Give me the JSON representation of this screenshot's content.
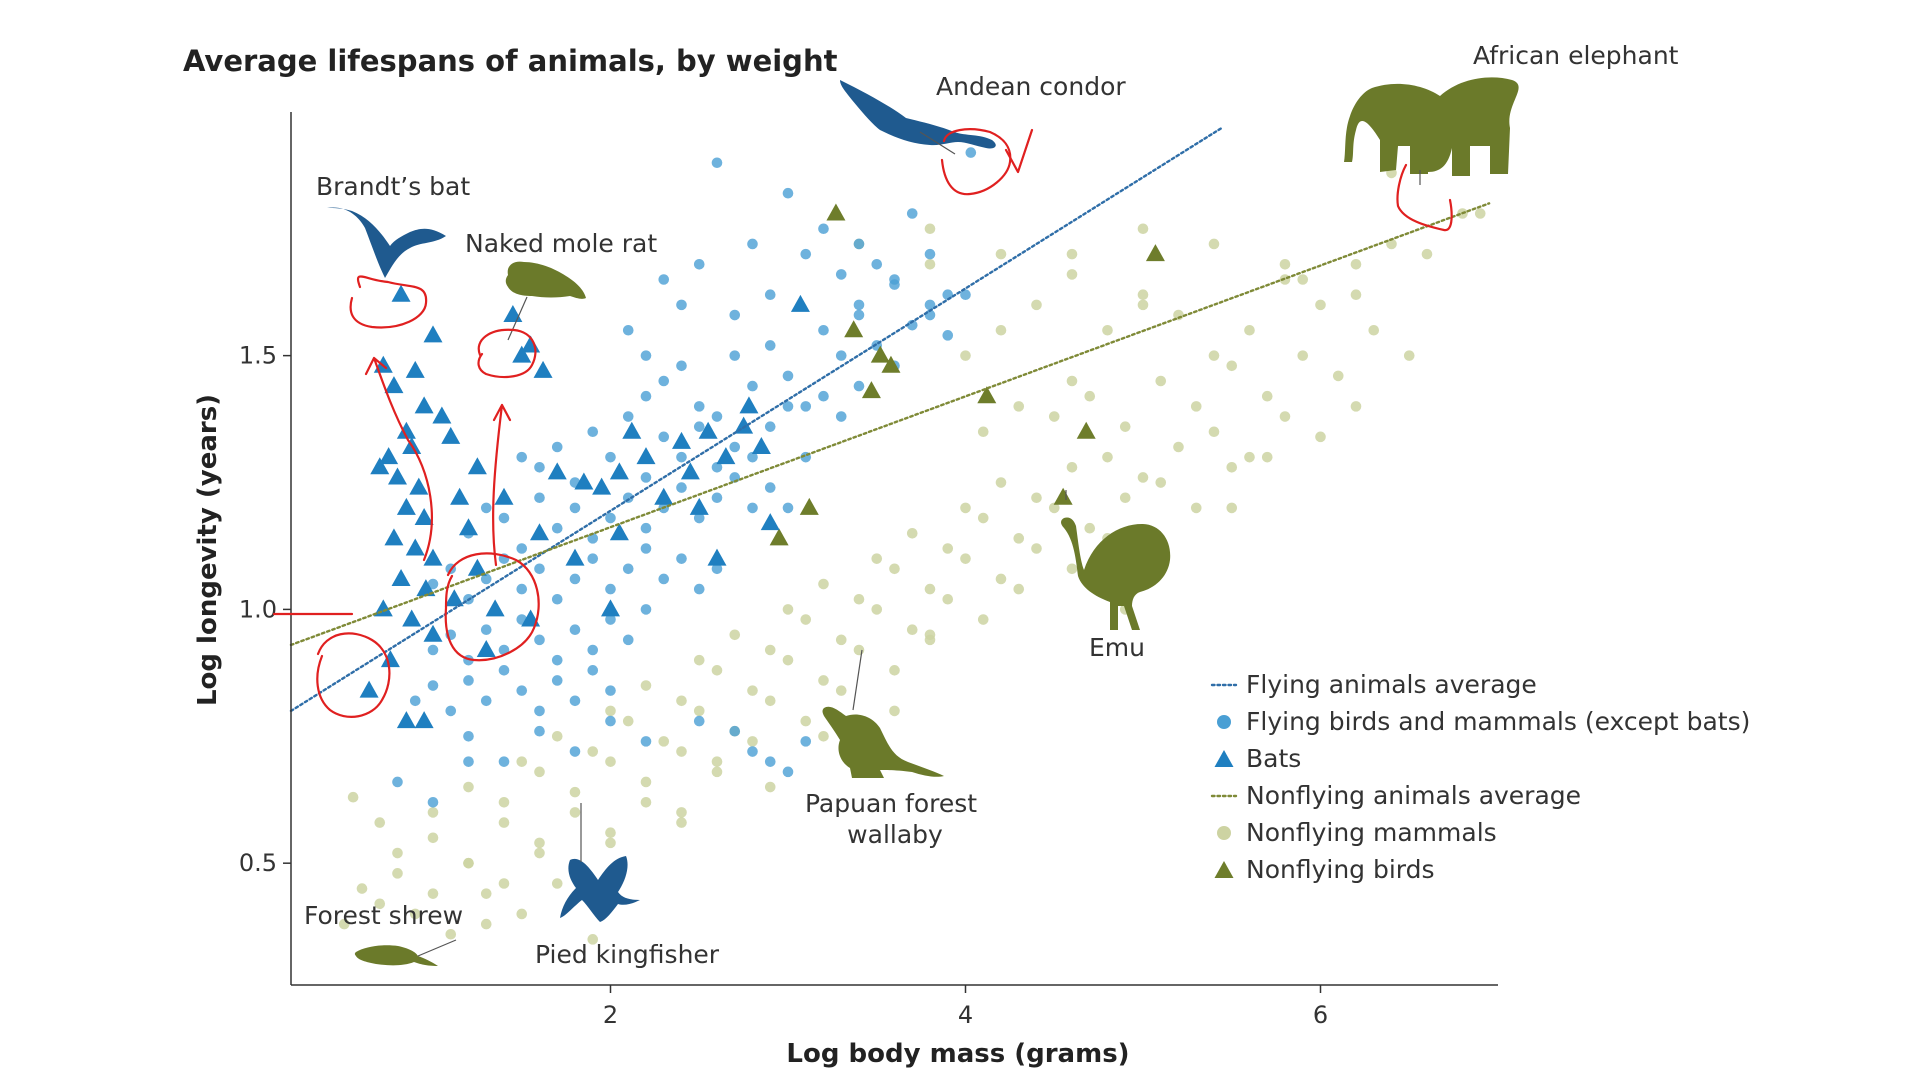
{
  "chart_data": {
    "type": "scatter",
    "title": "Average lifespans of animals, by weight",
    "xlabel": "Log body mass (grams)",
    "ylabel": "Log longevity (years)",
    "xlim": [
      0.2,
      7.0
    ],
    "ylim": [
      0.26,
      1.98
    ],
    "xticks": [
      2,
      4,
      6
    ],
    "yticks": [
      0.5,
      1.0,
      1.5
    ],
    "xtick_labels": [
      "2",
      "4",
      "6"
    ],
    "ytick_labels": [
      "0.5",
      "1.0",
      "1.5"
    ],
    "grid": false,
    "legend_position": "bottom-right",
    "series": [
      {
        "name": "Flying animals average",
        "kind": "trend",
        "color": "#2f6ea8",
        "x": [
          0.2,
          5.45
        ],
        "y": [
          0.8,
          1.95
        ]
      },
      {
        "name": "Nonflying animals average",
        "kind": "trend",
        "color": "#7f8a37",
        "x": [
          0.2,
          6.95
        ],
        "y": [
          0.93,
          1.8
        ]
      },
      {
        "name": "Flying birds and mammals (except bats)",
        "kind": "circle",
        "color": "#4a9fd4",
        "x": [
          2.6,
          3.0,
          2.8,
          2.3,
          2.1,
          2.2,
          2.4,
          2.5,
          2.7,
          2.9,
          3.1,
          3.2,
          3.3,
          3.4,
          3.5,
          3.6,
          3.7,
          3.8,
          3.9,
          2.2,
          2.3,
          2.4,
          2.5,
          2.6,
          2.7,
          2.8,
          2.9,
          3.0,
          3.1,
          3.2,
          3.3,
          3.4,
          3.5,
          3.6,
          3.7,
          3.8,
          3.9,
          1.5,
          1.6,
          1.7,
          1.8,
          1.9,
          2.0,
          2.1,
          2.2,
          2.3,
          2.4,
          2.5,
          2.6,
          2.7,
          2.8,
          2.9,
          3.0,
          3.1,
          3.2,
          3.3,
          3.4,
          1.2,
          1.3,
          1.4,
          1.5,
          1.6,
          1.7,
          1.8,
          1.9,
          2.0,
          2.1,
          2.2,
          2.3,
          2.4,
          2.5,
          2.6,
          2.7,
          2.8,
          2.9,
          3.0,
          1.0,
          1.1,
          1.2,
          1.3,
          1.4,
          1.5,
          1.6,
          1.7,
          1.8,
          1.9,
          2.0,
          2.1,
          2.2,
          2.3,
          2.4,
          2.5,
          2.6,
          1.0,
          1.1,
          1.2,
          1.3,
          1.4,
          1.5,
          1.6,
          1.7,
          1.8,
          1.9,
          2.0,
          2.1,
          2.2,
          0.9,
          1.0,
          1.1,
          1.2,
          1.3,
          1.4,
          1.5,
          1.6,
          1.7,
          1.8,
          1.9,
          2.0,
          2.5,
          2.8,
          3.0,
          1.2,
          1.4,
          1.6,
          1.8,
          2.0,
          2.2,
          2.7,
          2.9,
          3.1,
          0.8,
          1.0,
          1.2,
          3.4,
          3.6,
          3.8,
          4.0,
          4.03
        ],
        "y": [
          1.88,
          1.82,
          1.72,
          1.65,
          1.55,
          1.5,
          1.6,
          1.68,
          1.58,
          1.62,
          1.7,
          1.75,
          1.66,
          1.72,
          1.68,
          1.64,
          1.78,
          1.7,
          1.62,
          1.42,
          1.45,
          1.48,
          1.4,
          1.38,
          1.5,
          1.44,
          1.52,
          1.46,
          1.4,
          1.55,
          1.5,
          1.58,
          1.52,
          1.48,
          1.56,
          1.6,
          1.54,
          1.3,
          1.28,
          1.32,
          1.25,
          1.35,
          1.3,
          1.38,
          1.26,
          1.34,
          1.3,
          1.36,
          1.28,
          1.32,
          1.3,
          1.36,
          1.4,
          1.3,
          1.42,
          1.38,
          1.44,
          1.15,
          1.2,
          1.18,
          1.12,
          1.22,
          1.16,
          1.2,
          1.14,
          1.18,
          1.22,
          1.16,
          1.2,
          1.24,
          1.18,
          1.22,
          1.26,
          1.2,
          1.24,
          1.2,
          1.05,
          1.08,
          1.02,
          1.06,
          1.1,
          1.04,
          1.08,
          1.02,
          1.06,
          1.1,
          1.04,
          1.08,
          1.12,
          1.06,
          1.1,
          1.04,
          1.08,
          0.92,
          0.95,
          0.9,
          0.96,
          0.92,
          0.98,
          0.94,
          0.9,
          0.96,
          0.92,
          0.98,
          0.94,
          1.0,
          0.82,
          0.85,
          0.8,
          0.86,
          0.82,
          0.88,
          0.84,
          0.8,
          0.86,
          0.82,
          0.88,
          0.84,
          0.78,
          0.72,
          0.68,
          0.75,
          0.7,
          0.76,
          0.72,
          0.78,
          0.74,
          0.76,
          0.7,
          0.74,
          0.66,
          0.62,
          0.7,
          1.6,
          1.65,
          1.58,
          1.62,
          1.9
        ]
      },
      {
        "name": "Bats",
        "kind": "triangle",
        "color": "#1f7fc0",
        "x": [
          0.82,
          1.0,
          0.72,
          0.9,
          0.78,
          0.95,
          1.05,
          0.85,
          0.75,
          0.88,
          1.1,
          0.7,
          0.8,
          0.92,
          1.15,
          0.85,
          0.95,
          1.2,
          0.78,
          0.9,
          1.0,
          1.25,
          0.82,
          0.96,
          1.12,
          0.72,
          0.88,
          1.0,
          1.3,
          0.76,
          0.64,
          0.85,
          0.95,
          1.45,
          1.55,
          1.62,
          1.5,
          1.7,
          1.85,
          1.95,
          2.05,
          2.2,
          2.4,
          2.55,
          2.65,
          2.75,
          2.85,
          2.5,
          2.6,
          2.9,
          2.05,
          2.3,
          2.45,
          3.07,
          2.12,
          2.78,
          1.25,
          1.4,
          1.6,
          1.8,
          1.35,
          2.0,
          1.55
        ],
        "y": [
          1.62,
          1.54,
          1.48,
          1.47,
          1.44,
          1.4,
          1.38,
          1.35,
          1.3,
          1.32,
          1.34,
          1.28,
          1.26,
          1.24,
          1.22,
          1.2,
          1.18,
          1.16,
          1.14,
          1.12,
          1.1,
          1.08,
          1.06,
          1.04,
          1.02,
          1.0,
          0.98,
          0.95,
          0.92,
          0.9,
          0.84,
          0.78,
          0.78,
          1.58,
          1.52,
          1.47,
          1.5,
          1.27,
          1.25,
          1.24,
          1.27,
          1.3,
          1.33,
          1.35,
          1.3,
          1.36,
          1.32,
          1.2,
          1.1,
          1.17,
          1.15,
          1.22,
          1.27,
          1.6,
          1.35,
          1.4,
          1.28,
          1.22,
          1.15,
          1.1,
          1.0,
          1.0,
          0.98
        ]
      },
      {
        "name": "Nonflying mammals",
        "kind": "circle",
        "color": "#cdd3a2",
        "x": [
          4.0,
          4.2,
          4.4,
          4.6,
          4.8,
          5.0,
          5.2,
          5.4,
          5.6,
          5.8,
          6.0,
          6.2,
          6.4,
          6.6,
          6.8,
          4.1,
          4.3,
          4.5,
          4.7,
          4.9,
          5.1,
          5.3,
          5.5,
          5.7,
          5.9,
          6.1,
          6.3,
          6.5,
          4.0,
          4.2,
          4.4,
          4.6,
          4.8,
          5.0,
          5.2,
          5.4,
          5.6,
          5.8,
          6.0,
          6.2,
          3.5,
          3.7,
          3.9,
          4.1,
          4.3,
          4.5,
          4.7,
          4.9,
          5.1,
          5.3,
          5.5,
          5.7,
          3.0,
          3.2,
          3.4,
          3.6,
          3.8,
          4.0,
          4.2,
          4.4,
          4.6,
          4.8,
          5.0,
          2.5,
          2.7,
          2.9,
          3.1,
          3.3,
          3.5,
          3.7,
          3.9,
          4.1,
          4.3,
          2.0,
          2.2,
          2.4,
          2.6,
          2.8,
          3.0,
          3.2,
          3.4,
          3.6,
          3.8,
          1.5,
          1.7,
          1.9,
          2.1,
          2.3,
          2.5,
          2.7,
          2.9,
          3.1,
          3.3,
          1.0,
          1.2,
          1.4,
          1.6,
          1.8,
          2.0,
          2.2,
          2.4,
          2.6,
          2.8,
          0.8,
          1.0,
          1.2,
          1.4,
          1.6,
          1.8,
          2.0,
          2.2,
          2.4,
          0.6,
          0.8,
          1.0,
          1.2,
          1.4,
          1.6,
          1.8,
          2.0,
          0.5,
          0.7,
          0.9,
          1.1,
          1.3,
          1.5,
          1.7,
          1.9,
          4.6,
          5.0,
          5.4,
          5.8,
          6.2,
          3.8,
          4.2,
          4.6,
          5.0,
          3.4,
          3.8,
          6.4,
          6.9,
          5.9,
          5.5,
          4.9,
          3.8,
          3.6,
          3.2,
          2.6,
          2.9,
          2.4,
          1.3,
          1.9,
          0.7,
          0.55
        ],
        "y": [
          1.5,
          1.55,
          1.6,
          1.45,
          1.55,
          1.62,
          1.58,
          1.5,
          1.55,
          1.65,
          1.6,
          1.68,
          1.72,
          1.7,
          1.78,
          1.35,
          1.4,
          1.38,
          1.42,
          1.36,
          1.45,
          1.4,
          1.48,
          1.42,
          1.5,
          1.46,
          1.55,
          1.5,
          1.2,
          1.25,
          1.22,
          1.28,
          1.3,
          1.26,
          1.32,
          1.35,
          1.3,
          1.38,
          1.34,
          1.4,
          1.1,
          1.15,
          1.12,
          1.18,
          1.14,
          1.2,
          1.16,
          1.22,
          1.25,
          1.2,
          1.28,
          1.3,
          1.0,
          1.05,
          1.02,
          1.08,
          1.04,
          1.1,
          1.06,
          1.12,
          1.08,
          1.14,
          1.1,
          0.9,
          0.95,
          0.92,
          0.98,
          0.94,
          1.0,
          0.96,
          1.02,
          0.98,
          1.04,
          0.8,
          0.85,
          0.82,
          0.88,
          0.84,
          0.9,
          0.86,
          0.92,
          0.88,
          0.94,
          0.7,
          0.75,
          0.72,
          0.78,
          0.74,
          0.8,
          0.76,
          0.82,
          0.78,
          0.84,
          0.6,
          0.65,
          0.62,
          0.68,
          0.64,
          0.7,
          0.66,
          0.72,
          0.68,
          0.74,
          0.52,
          0.55,
          0.5,
          0.58,
          0.54,
          0.6,
          0.56,
          0.62,
          0.58,
          0.45,
          0.48,
          0.44,
          0.5,
          0.46,
          0.52,
          0.48,
          0.54,
          0.38,
          0.42,
          0.4,
          0.36,
          0.44,
          0.4,
          0.46,
          0.42,
          1.7,
          1.75,
          1.72,
          1.68,
          1.62,
          1.75,
          1.7,
          1.66,
          1.6,
          1.72,
          1.68,
          1.86,
          1.78,
          1.65,
          1.2,
          1.0,
          0.95,
          0.8,
          0.75,
          0.7,
          0.65,
          0.6,
          0.38,
          0.35,
          0.58,
          0.63
        ]
      },
      {
        "name": "Nonflying birds",
        "kind": "triangle",
        "color": "#6e7d2b",
        "x": [
          3.27,
          3.37,
          3.52,
          3.58,
          3.47,
          3.12,
          2.95,
          4.12,
          4.68,
          5.07,
          4.55
        ],
        "y": [
          1.78,
          1.55,
          1.5,
          1.48,
          1.43,
          1.2,
          1.14,
          1.42,
          1.35,
          1.7,
          1.22
        ]
      }
    ],
    "annotations": [
      {
        "text": "Brandt’s bat",
        "x": 0.82,
        "y": 1.62
      },
      {
        "text": "Naked mole rat",
        "x": 1.62,
        "y": 1.49
      },
      {
        "text": "Andean condor",
        "x": 4.02,
        "y": 1.9
      },
      {
        "text": "African elephant",
        "x": 6.5,
        "y": 1.8
      },
      {
        "text": "Emu",
        "x": 4.6,
        "y": 1.22
      },
      {
        "text": "Papuan forest wallaby",
        "x": 3.5,
        "y": 0.9
      },
      {
        "text": "Pied kingfisher",
        "x": 1.95,
        "y": 0.59
      },
      {
        "text": "Forest shrew",
        "x": 1.1,
        "y": 0.32
      }
    ]
  },
  "legend": [
    {
      "label": "Flying animals average",
      "marker": "dotted-line",
      "color": "#2f6ea8"
    },
    {
      "label": "Flying birds and mammals (except bats)",
      "marker": "circle",
      "color": "#4a9fd4"
    },
    {
      "label": "Bats",
      "marker": "triangle",
      "color": "#1f7fc0"
    },
    {
      "label": "Nonflying animals average",
      "marker": "dotted-line",
      "color": "#7f8a37"
    },
    {
      "label": "Nonflying mammals",
      "marker": "circle",
      "color": "#cdd3a2"
    },
    {
      "label": "Nonflying birds",
      "marker": "triangle",
      "color": "#6e7d2b"
    }
  ],
  "colors": {
    "axis": "#333333",
    "silhouette_flying": "#1f5a8f",
    "silhouette_nonflying": "#6b7a2a",
    "ink_annotation": "#e02020"
  },
  "silhouettes": [
    {
      "name": "bat-silhouette-icon",
      "group": "flying"
    },
    {
      "name": "condor-silhouette-icon",
      "group": "flying"
    },
    {
      "name": "kingfisher-silhouette-icon",
      "group": "flying"
    },
    {
      "name": "mole-rat-silhouette-icon",
      "group": "nonflying"
    },
    {
      "name": "elephant-silhouette-icon",
      "group": "nonflying"
    },
    {
      "name": "emu-silhouette-icon",
      "group": "nonflying"
    },
    {
      "name": "wallaby-silhouette-icon",
      "group": "nonflying"
    },
    {
      "name": "shrew-silhouette-icon",
      "group": "nonflying"
    }
  ]
}
